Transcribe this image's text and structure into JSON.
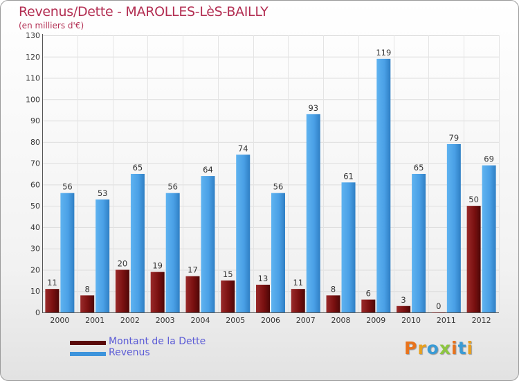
{
  "title": "Revenus/Dette - MAROLLES-LèS-BAILLY",
  "subtitle": "(en milliers d'€)",
  "legend": [
    {
      "label": "Montant de la Dette",
      "color": "#7a1010"
    },
    {
      "label": "Revenus",
      "color": "#4aa0e6"
    }
  ],
  "logo": "Proxiti",
  "logo_colors": [
    "#e8731c",
    "#e8a020",
    "#3a9bd5",
    "#8cc63f",
    "#e8731c",
    "#3a9bd5",
    "#e8a020"
  ],
  "chart_data": {
    "type": "bar",
    "title": "Revenus/Dette - MAROLLES-LèS-BAILLY",
    "ylabel": "(en milliers d'€)",
    "xlabel": "",
    "categories": [
      "2000",
      "2001",
      "2002",
      "2003",
      "2004",
      "2005",
      "2006",
      "2007",
      "2008",
      "2009",
      "2010",
      "2011",
      "2012"
    ],
    "series": [
      {
        "name": "Montant de la Dette",
        "color": "#7a1010",
        "values": [
          11,
          8,
          20,
          19,
          17,
          15,
          13,
          11,
          8,
          6,
          3,
          0,
          50
        ]
      },
      {
        "name": "Revenus",
        "color": "#4aa0e6",
        "values": [
          56,
          53,
          65,
          56,
          64,
          74,
          56,
          93,
          61,
          119,
          65,
          79,
          69
        ]
      }
    ],
    "ylim": [
      0,
      130
    ],
    "yticks": [
      0,
      10,
      20,
      30,
      40,
      50,
      60,
      70,
      80,
      90,
      100,
      110,
      120,
      130
    ],
    "grid": true,
    "legend_position": "bottom-left"
  }
}
